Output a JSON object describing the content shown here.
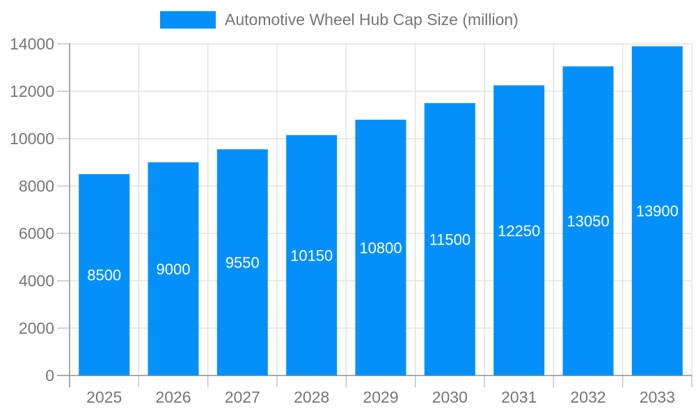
{
  "chart_data": {
    "type": "bar",
    "title": "Automotive Wheel Hub Cap Size (million)",
    "categories": [
      "2025",
      "2026",
      "2027",
      "2028",
      "2029",
      "2030",
      "2031",
      "2032",
      "2033"
    ],
    "series": [
      {
        "name": "Automotive Wheel Hub Cap Size (million)",
        "color": "#0490fa",
        "values": [
          8500,
          9000,
          9550,
          10150,
          10800,
          11500,
          12250,
          13050,
          13900
        ]
      }
    ],
    "bar_labels": [
      "8500",
      "9000",
      "9550",
      "10150",
      "10800",
      "11500",
      "12250",
      "13050",
      "13900"
    ],
    "xlabel": "",
    "ylabel": "",
    "ylim": [
      0,
      14000
    ],
    "yticks": [
      0,
      2000,
      4000,
      6000,
      8000,
      10000,
      12000,
      14000
    ],
    "ytick_labels": [
      "0",
      "2000",
      "4000",
      "6000",
      "8000",
      "10000",
      "12000",
      "14000"
    ],
    "grid": true,
    "legend_position": "top",
    "colors": {
      "background": "#ffffff",
      "bar_fill": "#0490fa",
      "bar_label_text": "#ffffff",
      "axis_text": "#757575",
      "gridline": "#e2e2e2",
      "axis_line": "#a9a9a9",
      "tick_mark": "#c4c4c4"
    }
  }
}
